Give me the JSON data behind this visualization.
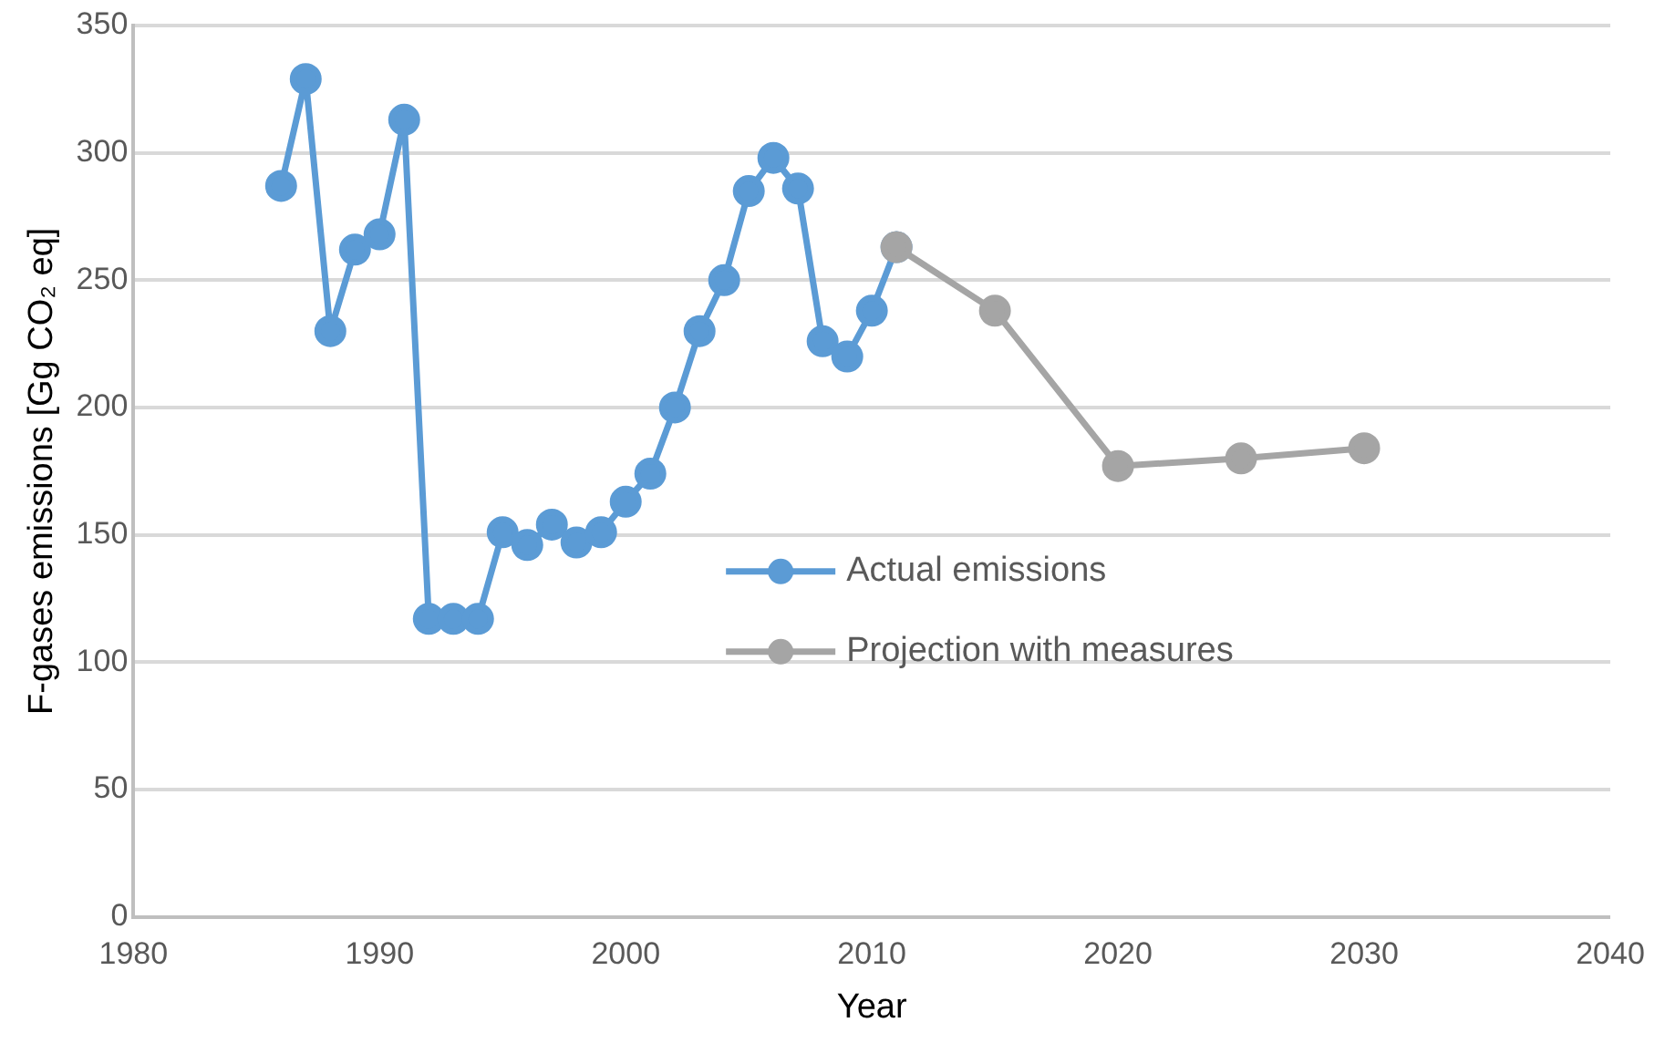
{
  "chart_data": {
    "type": "line",
    "xlabel": "Year",
    "ylabel": "F-gases emissions [Gg CO₂ eq]",
    "xlim": [
      1980,
      2040
    ],
    "xticks": [
      1980,
      1990,
      2000,
      2010,
      2020,
      2030,
      2040
    ],
    "ylim": [
      0,
      350
    ],
    "yticks": [
      0,
      50,
      100,
      150,
      200,
      250,
      300,
      350
    ],
    "grid": "y",
    "legend": "center",
    "marker": "circle",
    "line_style": "solid",
    "series": [
      {
        "name": "Actual emissions",
        "color": "#5b9bd5",
        "x": [
          1986,
          1987,
          1988,
          1989,
          1990,
          1991,
          1992,
          1993,
          1994,
          1995,
          1996,
          1997,
          1998,
          1999,
          2000,
          2001,
          2002,
          2003,
          2004,
          2005,
          2006,
          2007,
          2008,
          2009,
          2010,
          2011
        ],
        "values": [
          287,
          329,
          230,
          262,
          268,
          313,
          117,
          117,
          117,
          151,
          146,
          154,
          147,
          151,
          163,
          174,
          200,
          230,
          250,
          285,
          298,
          286,
          226,
          220,
          238,
          263
        ]
      },
      {
        "name": "Projection with measures",
        "color": "#a5a5a5",
        "x": [
          2011,
          2015,
          2020,
          2025,
          2030
        ],
        "values": [
          263,
          238,
          177,
          180,
          184
        ]
      }
    ]
  }
}
